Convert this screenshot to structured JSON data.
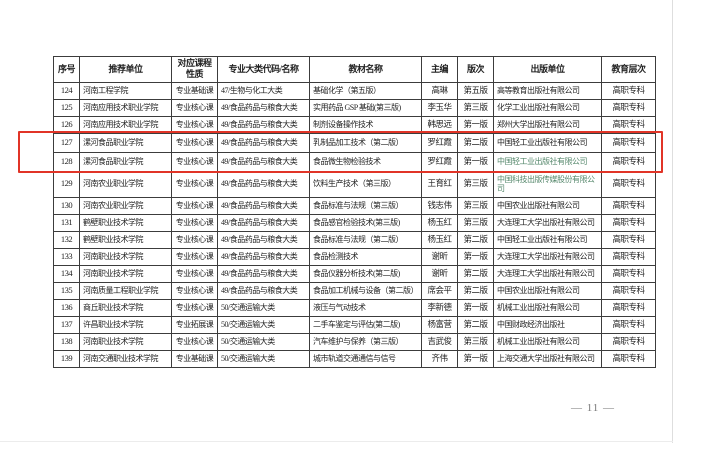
{
  "page": {
    "footer_page_number": "— 11 —"
  },
  "colors": {
    "highlight_red": "#e13427",
    "tint_green": "#56886c",
    "table_border": "#3c3c3c",
    "text": "#232323",
    "page_number_color": "#777777"
  },
  "table": {
    "headers": [
      "序号",
      "推荐单位",
      "对应课程性质",
      "专业大类代码/名称",
      "教材名称",
      "主编",
      "版次",
      "出版单位",
      "教育层次"
    ],
    "rows": [
      {
        "no": "124",
        "unit": "河南工程学院",
        "course_type": "专业基础课",
        "major": "47/生物与化工大类",
        "book": "基础化学（第五版）",
        "editor": "高琳",
        "edition": "第五版",
        "publisher": "高等教育出版社有限公司",
        "level": "高职专科",
        "highlighted": false,
        "tint": false
      },
      {
        "no": "125",
        "unit": "河南应用技术职业学院",
        "course_type": "专业核心课",
        "major": "49/食品药品与粮食大类",
        "book": "实用药品 GSP 基础(第三版)",
        "editor": "李玉华",
        "edition": "第三版",
        "publisher": "化学工业出版社有限公司",
        "level": "高职专科",
        "highlighted": false,
        "tint": false
      },
      {
        "no": "126",
        "unit": "河南应用技术职业学院",
        "course_type": "专业核心课",
        "major": "49/食品药品与粮食大类",
        "book": "制剂设备操作技术",
        "editor": "韩思远",
        "edition": "第一版",
        "publisher": "郑州大学出版社有限公司",
        "level": "高职专科",
        "highlighted": false,
        "tint": false
      },
      {
        "no": "127",
        "unit": "漯河食品职业学院",
        "course_type": "专业核心课",
        "major": "49/食品药品与粮食大类",
        "book": "乳制品加工技术（第二版）",
        "editor": "罗红霞",
        "edition": "第二版",
        "publisher": "中国轻工业出版社有限公司",
        "level": "高职专科",
        "highlighted": true,
        "tint": false
      },
      {
        "no": "128",
        "unit": "漯河食品职业学院",
        "course_type": "专业核心课",
        "major": "49/食品药品与粮食大类",
        "book": "食品微生物检验技术",
        "editor": "罗红霞",
        "edition": "第一版",
        "publisher": "中国轻工业出版社有限公司",
        "level": "高职专科",
        "highlighted": true,
        "tint": true
      },
      {
        "no": "129",
        "unit": "河南农业职业学院",
        "course_type": "专业核心课",
        "major": "49/食品药品与粮食大类",
        "book": "饮料生产技术（第三版）",
        "editor": "王育红",
        "edition": "第三版",
        "publisher": "中国科技出版传媒股份有限公司",
        "level": "高职专科",
        "highlighted": false,
        "tint": true
      },
      {
        "no": "130",
        "unit": "河南农业职业学院",
        "course_type": "专业核心课",
        "major": "49/食品药品与粮食大类",
        "book": "食品标准与法规（第三版）",
        "editor": "钱志伟",
        "edition": "第三版",
        "publisher": "中国农业出版社有限公司",
        "level": "高职专科",
        "highlighted": false,
        "tint": false
      },
      {
        "no": "131",
        "unit": "鹤壁职业技术学院",
        "course_type": "专业核心课",
        "major": "49/食品药品与粮食大类",
        "book": "食品感官检验技术(第三版)",
        "editor": "杨玉红",
        "edition": "第三版",
        "publisher": "大连理工大学出版社有限公司",
        "level": "高职专科",
        "highlighted": false,
        "tint": false
      },
      {
        "no": "132",
        "unit": "鹤壁职业技术学院",
        "course_type": "专业核心课",
        "major": "49/食品药品与粮食大类",
        "book": "食品标准与法规（第二版）",
        "editor": "杨玉红",
        "edition": "第二版",
        "publisher": "中国轻工业出版社有限公司",
        "level": "高职专科",
        "highlighted": false,
        "tint": false
      },
      {
        "no": "133",
        "unit": "河南职业技术学院",
        "course_type": "专业核心课",
        "major": "49/食品药品与粮食大类",
        "book": "食品检测技术",
        "editor": "谢昕",
        "edition": "第一版",
        "publisher": "大连理工大学出版社有限公司",
        "level": "高职专科",
        "highlighted": false,
        "tint": false
      },
      {
        "no": "134",
        "unit": "河南职业技术学院",
        "course_type": "专业核心课",
        "major": "49/食品药品与粮食大类",
        "book": "食品仪器分析技术(第二版)",
        "editor": "谢昕",
        "edition": "第二版",
        "publisher": "大连理工大学出版社有限公司",
        "level": "高职专科",
        "highlighted": false,
        "tint": false
      },
      {
        "no": "135",
        "unit": "河南质量工程职业学院",
        "course_type": "专业核心课",
        "major": "49/食品药品与粮食大类",
        "book": "食品加工机械与设备（第二版）",
        "editor": "席会平",
        "edition": "第二版",
        "publisher": "中国农业出版社有限公司",
        "level": "高职专科",
        "highlighted": false,
        "tint": false
      },
      {
        "no": "136",
        "unit": "商丘职业技术学院",
        "course_type": "专业核心课",
        "major": "50/交通运输大类",
        "book": "液压与气动技术",
        "editor": "李新德",
        "edition": "第一版",
        "publisher": "机械工业出版社有限公司",
        "level": "高职专科",
        "highlighted": false,
        "tint": false
      },
      {
        "no": "137",
        "unit": "许昌职业技术学院",
        "course_type": "专业拓展课",
        "major": "50/交通运输大类",
        "book": "二手车鉴定与评估(第二版)",
        "editor": "杨富营",
        "edition": "第二版",
        "publisher": "中国财政经济出版社",
        "level": "高职专科",
        "highlighted": false,
        "tint": false
      },
      {
        "no": "138",
        "unit": "河南职业技术学院",
        "course_type": "专业核心课",
        "major": "50/交通运输大类",
        "book": "汽车维护与保养（第三版）",
        "editor": "吉武俊",
        "edition": "第三版",
        "publisher": "机械工业出版社有限公司",
        "level": "高职专科",
        "highlighted": false,
        "tint": false
      },
      {
        "no": "139",
        "unit": "河南交通职业技术学院",
        "course_type": "专业基础课",
        "major": "50/交通运输大类",
        "book": "城市轨道交通通信与信号",
        "editor": "齐伟",
        "edition": "第一版",
        "publisher": "上海交通大学出版社有限公司",
        "level": "高职专科",
        "highlighted": false,
        "tint": false
      }
    ]
  }
}
